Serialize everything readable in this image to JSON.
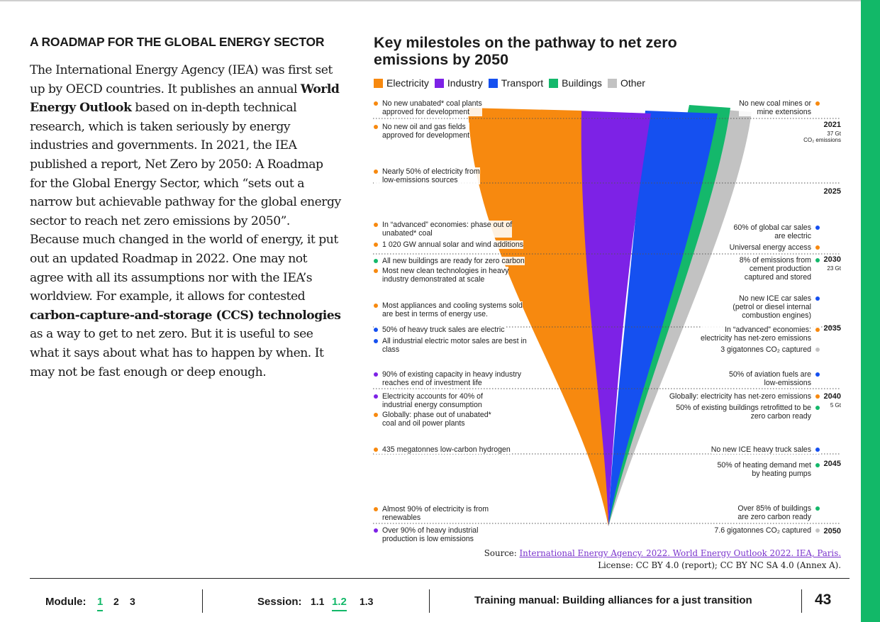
{
  "section": {
    "heading": "A ROADMAP FOR THE GLOBAL ENERGY SECTOR",
    "body": [
      {
        "t": "The International Energy Agency (IEA) was first set up by OECD countries. It publishes an annual "
      },
      {
        "t": "World Energy Outlook",
        "b": true
      },
      {
        "t": " based on in-depth technical research, which is taken seriously by energy industries and governments. In 2021, the IEA published a report, Net Zero by 2050: A Roadmap for the Global Energy Sector, which “sets out a narrow but achievable pathway for the global energy sector to reach net zero emissions by 2050”. Because much changed in the world of energy, it put out an updated Roadmap in 2022. One may not agree with all its assumptions nor with the IEA’s worldview. For example, it allows for contested "
      },
      {
        "t": "carbon-capture-and-storage (CCS) technologies",
        "b": true
      },
      {
        "t": " as a way to get to net zero. But it is useful to see what it says about what has to happen by when. It may not be fast enough or deep enough."
      }
    ]
  },
  "figure": {
    "title": "Key milestoles on the pathway to net zero emissions by 2050",
    "legend": [
      {
        "key": "electricity",
        "label": "Electricity",
        "color": "#f7890f"
      },
      {
        "key": "industry",
        "label": "Industry",
        "color": "#7d22e6"
      },
      {
        "key": "transport",
        "label": "Transport",
        "color": "#1550f0"
      },
      {
        "key": "buildings",
        "label": "Buildings",
        "color": "#14b86b"
      },
      {
        "key": "other",
        "label": "Other",
        "color": "#c2c2c2"
      }
    ],
    "colors": {
      "electricity": "#f7890f",
      "industry": "#7d22e6",
      "transport": "#1550f0",
      "buildings": "#14b86b",
      "other": "#c2c2c2"
    },
    "years": [
      {
        "year": "2021",
        "note": "37 Gt\nCO₂ emissions"
      },
      {
        "year": "2025",
        "note": ""
      },
      {
        "year": "2030",
        "note": "23 Gt"
      },
      {
        "year": "2035",
        "note": ""
      },
      {
        "year": "2040",
        "note": "5 Gt"
      },
      {
        "year": "2045",
        "note": ""
      },
      {
        "year": "2050",
        "note": ""
      }
    ],
    "milestones_left": [
      {
        "text": "No new unabated* coal plants\napproved for development",
        "sector": "electricity"
      },
      {
        "text": "No new oil and gas fields\napproved for development",
        "sector": "electricity"
      },
      {
        "text": "Nearly 50% of electricity from\nlow-emissions sources",
        "sector": "electricity"
      },
      {
        "text": "In “advanced” economies: phase out of\nunabated* coal",
        "sector": "electricity"
      },
      {
        "text": "1 020 GW annual solar and wind additions",
        "sector": "electricity"
      },
      {
        "text": "All new buildings are ready for zero carbon",
        "sector": "buildings"
      },
      {
        "text": "Most new clean technologies in heavy\nindustry demonstrated at scale",
        "sector": "electricity"
      },
      {
        "text": "Most appliances and cooling systems sold\nare best in terms of energy use.",
        "sector": "electricity"
      },
      {
        "text": "50% of heavy truck sales are electric",
        "sector": "transport"
      },
      {
        "text": "All industrial electric motor sales are best in\nclass",
        "sector": "transport"
      },
      {
        "text": "90% of existing capacity in heavy industry\nreaches end of investment life",
        "sector": "industry"
      },
      {
        "text": "Electricity accounts for 40% of\nindustrial energy consumption",
        "sector": "industry"
      },
      {
        "text": "Globally: phase out of unabated*\ncoal and oil power plants",
        "sector": "electricity"
      },
      {
        "text": "435 megatonnes low-carbon hydrogen",
        "sector": "electricity"
      },
      {
        "text": "Almost 90% of electricity is from\nrenewables",
        "sector": "electricity"
      },
      {
        "text": "Over 90% of heavy industrial\nproduction is low emissions",
        "sector": "industry"
      }
    ],
    "milestones_right": [
      {
        "text": "No new coal mines or\nmine extensions",
        "sector": "electricity"
      },
      {
        "text": "60% of global car sales\nare electric",
        "sector": "transport"
      },
      {
        "text": "Universal energy access",
        "sector": "electricity"
      },
      {
        "text": "8% of emissions from\ncement production\ncaptured and stored",
        "sector": "buildings"
      },
      {
        "text": "No new ICE car sales\n(petrol or diesel internal\ncombustion engines)",
        "sector": "transport"
      },
      {
        "text": "In “advanced” economies:\nelectricity has net-zero emissions",
        "sector": "electricity"
      },
      {
        "text": "3 gigatonnes CO₂ captured",
        "sector": "other"
      },
      {
        "text": "50% of aviation fuels are\nlow-emissions",
        "sector": "transport"
      },
      {
        "text": "Globally: electricity has net-zero emissions",
        "sector": "electricity"
      },
      {
        "text": "50% of existing buildings retrofitted to be\nzero carbon ready",
        "sector": "buildings"
      },
      {
        "text": "No new ICE heavy truck sales",
        "sector": "transport"
      },
      {
        "text": "50% of heating demand met\nby heating pumps",
        "sector": "buildings"
      },
      {
        "text": "Over 85% of buildings\nare zero carbon ready",
        "sector": "buildings"
      },
      {
        "text": "7.6 gigatonnes CO₂ captured",
        "sector": "other"
      }
    ],
    "source_prefix": "Source: ",
    "source_link": "International Energy Agency. 2022. World Energy Outlook 2022. IEA, Paris.",
    "license": "License: CC BY 4.0 (report); CC BY NC SA 4.0 (Annex A)."
  },
  "footer": {
    "module_label": "Module:",
    "modules": [
      "1",
      "2",
      "3"
    ],
    "active_module": "1",
    "session_label": "Session:",
    "sessions": [
      "1.1",
      "1.2",
      "1.3"
    ],
    "active_session": "1.2",
    "title": "Training manual: Building alliances for a just transition",
    "page": "43"
  }
}
